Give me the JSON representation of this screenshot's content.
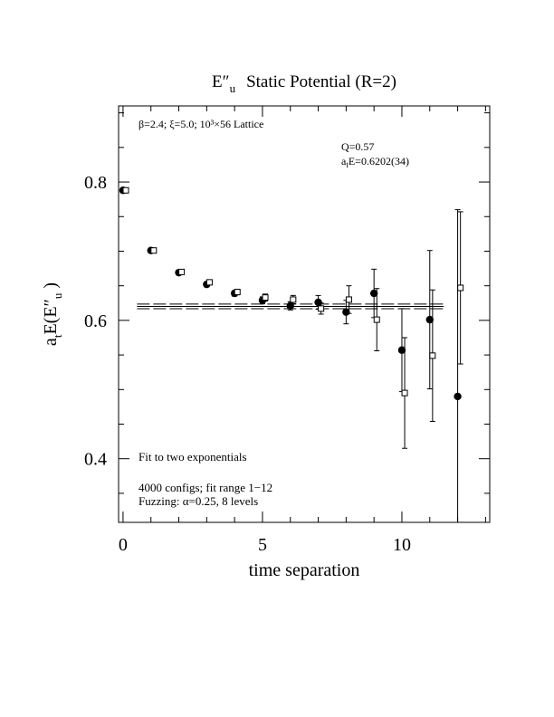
{
  "chart_data": {
    "type": "scatter",
    "title": {
      "symbol": "E″",
      "sub": "u",
      "text": "Static Potential (R=2)"
    },
    "x_label": "time separation",
    "y_label": {
      "a": "a",
      "a_sub": "t",
      "mid": "E(E″",
      "sub": "u",
      "end": " )"
    },
    "xlim": [
      -0.16,
      13.15
    ],
    "ylim": [
      0.308,
      0.91
    ],
    "xticks": [
      0,
      5,
      10
    ],
    "yticks": [
      0.4,
      0.6,
      0.8
    ],
    "x_minor_ticks": [
      1,
      2,
      3,
      4,
      6,
      7,
      8,
      9,
      11,
      12,
      13
    ],
    "y_minor_ticks": [
      0.35,
      0.45,
      0.5,
      0.55,
      0.65,
      0.7,
      0.75,
      0.85,
      0.9
    ],
    "series": [
      {
        "marker": "filled-circle",
        "color": "#000000",
        "x": [
          0,
          1,
          2,
          3,
          4,
          5,
          6,
          7,
          8,
          9,
          10,
          11,
          12
        ],
        "values": [
          0.788,
          0.701,
          0.669,
          0.652,
          0.639,
          0.629,
          0.621,
          0.626,
          0.612,
          0.639,
          0.557,
          0.601,
          0.49
        ],
        "errors": [
          0.002,
          0.002,
          0.003,
          0.003,
          0.004,
          0.005,
          0.006,
          0.01,
          0.017,
          0.035,
          0.06,
          0.1,
          0.27
        ]
      },
      {
        "marker": "open-square",
        "color": "#000000",
        "x": [
          0.1,
          1.1,
          2.1,
          3.1,
          4.1,
          5.1,
          6.1,
          7.1,
          8.1,
          9.1,
          10.1,
          11.1,
          12.1
        ],
        "values": [
          0.788,
          0.701,
          0.67,
          0.655,
          0.641,
          0.633,
          0.63,
          0.617,
          0.63,
          0.601,
          0.495,
          0.549,
          0.647
        ],
        "errors": [
          0.002,
          0.002,
          0.003,
          0.003,
          0.004,
          0.005,
          0.006,
          0.008,
          0.02,
          0.045,
          0.08,
          0.095,
          0.11
        ]
      }
    ],
    "fit": {
      "value": 0.6202,
      "error": 0.0034,
      "x_range": [
        0.5,
        11.5
      ]
    },
    "annotations": {
      "lattice": "β=2.4; ξ=5.0; 10³×56 Lattice",
      "q": "Q=0.57",
      "energy": {
        "a": "a",
        "sub": "t",
        "rest": "E=0.6202(34)"
      },
      "fit_note": "Fit to two exponentials",
      "configs": "4000 configs; fit range 1−12",
      "fuzzing": "Fuzzing: α=0.25, 8 levels"
    }
  }
}
